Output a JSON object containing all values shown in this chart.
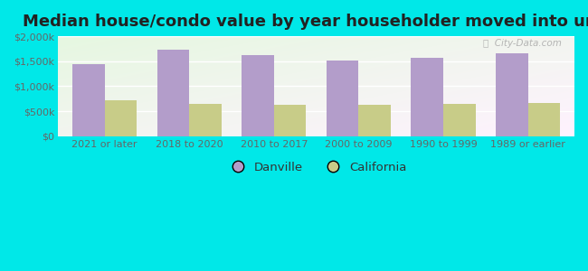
{
  "title": "Median house/condo value by year householder moved into unit",
  "categories": [
    "2021 or later",
    "2018 to 2020",
    "2010 to 2017",
    "2000 to 2009",
    "1990 to 1999",
    "1989 or earlier"
  ],
  "danville_values": [
    1450000,
    1730000,
    1620000,
    1510000,
    1560000,
    1650000
  ],
  "california_values": [
    710000,
    650000,
    625000,
    630000,
    650000,
    660000
  ],
  "danville_color": "#b39dca",
  "california_color": "#c8cc88",
  "background_color": "#00e8e8",
  "ylim": [
    0,
    2000000
  ],
  "yticks": [
    0,
    500000,
    1000000,
    1500000,
    2000000
  ],
  "ytick_labels": [
    "$0",
    "$500k",
    "$1,000k",
    "$1,500k",
    "$2,000k"
  ],
  "legend_labels": [
    "Danville",
    "California"
  ],
  "bar_width": 0.38,
  "title_fontsize": 13,
  "tick_fontsize": 8,
  "legend_fontsize": 9.5,
  "watermark": "ⓘ  City-Data.com",
  "grid_color": "#dddddd",
  "tick_color": "#666666"
}
